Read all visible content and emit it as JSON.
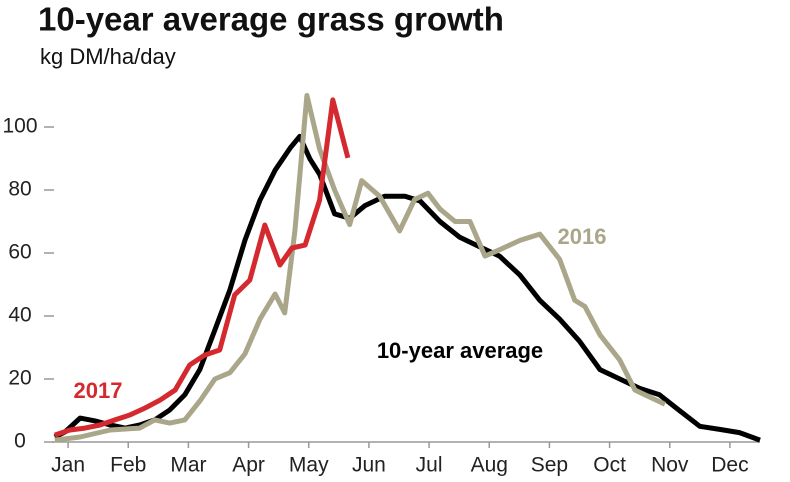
{
  "chart_data": {
    "type": "line",
    "title": "10-year average grass growth",
    "subtitle": "kg DM/ha/day",
    "xlim": [
      0,
      12
    ],
    "xticks": [
      {
        "value": 0.5,
        "label": "Jan"
      },
      {
        "value": 1.5,
        "label": "Feb"
      },
      {
        "value": 2.5,
        "label": "Mar"
      },
      {
        "value": 3.5,
        "label": "Apr"
      },
      {
        "value": 4.5,
        "label": "May"
      },
      {
        "value": 5.5,
        "label": "Jun"
      },
      {
        "value": 6.5,
        "label": "Jul"
      },
      {
        "value": 7.5,
        "label": "Aug"
      },
      {
        "value": 8.5,
        "label": "Sep"
      },
      {
        "value": 9.5,
        "label": "Oct"
      },
      {
        "value": 10.5,
        "label": "Nov"
      },
      {
        "value": 11.5,
        "label": "Dec"
      }
    ],
    "ylim": [
      0,
      110
    ],
    "yticks": [
      0,
      20,
      40,
      60,
      80,
      100
    ],
    "series": [
      {
        "name": "10-year average",
        "color": "#000000",
        "x": [
          0.28,
          0.45,
          0.7,
          0.95,
          1.2,
          1.45,
          1.69,
          1.94,
          2.19,
          2.44,
          2.69,
          2.94,
          3.19,
          3.44,
          3.69,
          3.94,
          4.19,
          4.35,
          4.52,
          4.68,
          4.93,
          5.18,
          5.43,
          5.76,
          6.1,
          6.35,
          6.68,
          7.01,
          7.34,
          7.67,
          8.01,
          8.34,
          8.67,
          9.0,
          9.34,
          9.67,
          10.0,
          10.33,
          10.66,
          11.0,
          11.33,
          11.66,
          12.0
        ],
        "values": [
          1.6,
          3.2,
          7.6,
          6.7,
          5.4,
          4.4,
          5.4,
          7,
          10.2,
          15,
          23,
          35.6,
          48.3,
          64.1,
          76.8,
          86.3,
          93.3,
          97,
          89.8,
          85,
          72.4,
          71,
          75,
          78,
          78,
          76.5,
          70,
          65,
          62,
          59,
          53,
          45,
          39,
          32,
          23,
          20,
          17,
          15,
          10,
          5,
          4,
          3,
          0.6
        ]
      },
      {
        "name": "2016",
        "color": "#aaa68a",
        "x": [
          0.28,
          0.7,
          1.2,
          1.69,
          1.94,
          2.19,
          2.44,
          2.69,
          2.94,
          3.19,
          3.44,
          3.69,
          3.94,
          4.1,
          4.27,
          4.47,
          4.68,
          4.93,
          5.18,
          5.38,
          5.68,
          6.01,
          6.26,
          6.48,
          6.68,
          6.93,
          7.18,
          7.43,
          7.67,
          8.01,
          8.34,
          8.67,
          8.92,
          9.09,
          9.34,
          9.67,
          9.92,
          10.42
        ],
        "values": [
          0.6,
          1.6,
          3.8,
          4.4,
          7,
          6,
          7,
          13,
          20,
          22,
          28,
          39,
          47,
          41,
          67,
          110,
          93,
          80,
          69,
          83,
          78,
          67,
          77,
          79,
          74,
          70,
          70,
          59,
          61,
          64,
          66,
          58,
          45,
          43,
          34,
          26,
          16.5,
          12
        ]
      },
      {
        "name": "2017",
        "color": "#d42a2f",
        "x": [
          0.28,
          0.53,
          0.78,
          1.03,
          1.28,
          1.53,
          1.78,
          2.03,
          2.28,
          2.52,
          2.77,
          3.02,
          3.27,
          3.52,
          3.77,
          4.02,
          4.22,
          4.44,
          4.68,
          4.9,
          5.15
        ],
        "values": [
          2.2,
          3.8,
          4.4,
          5.4,
          7,
          8.6,
          10.8,
          13.3,
          16.5,
          24.4,
          27.6,
          29.2,
          46.7,
          51.4,
          68.9,
          56.2,
          61.6,
          62.5,
          76.8,
          108.6,
          90.2
        ]
      }
    ]
  }
}
